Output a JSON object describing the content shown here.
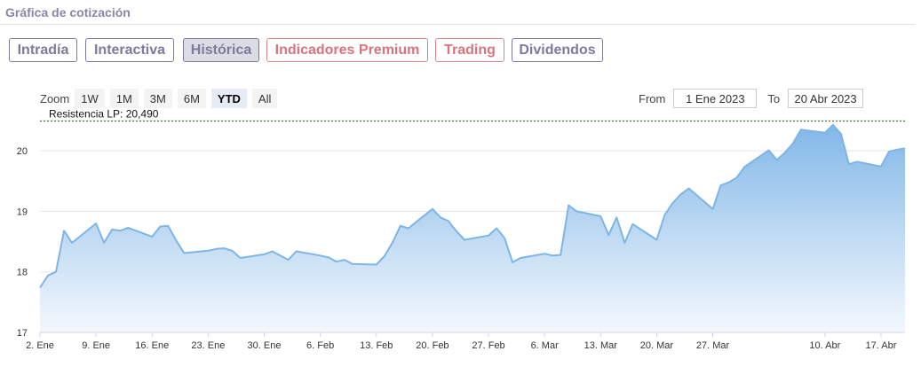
{
  "header": {
    "title": "Gráfica de cotización"
  },
  "tabs": [
    {
      "label": "Intradía",
      "style": "normal"
    },
    {
      "label": "Interactiva",
      "style": "normal"
    },
    {
      "label": "Histórica",
      "style": "active"
    },
    {
      "label": "Indicadores Premium",
      "style": "premium"
    },
    {
      "label": "Trading",
      "style": "premium"
    },
    {
      "label": "Dividendos",
      "style": "normal"
    }
  ],
  "zoom": {
    "label": "Zoom",
    "buttons": [
      "1W",
      "1M",
      "3M",
      "6M",
      "YTD",
      "All"
    ],
    "selected": "YTD"
  },
  "range": {
    "from_label": "From",
    "from_value": "1 Ene 2023",
    "to_label": "To",
    "to_value": "20 Abr 2023"
  },
  "colors": {
    "tab_normal": "#7d7a9c",
    "tab_premium": "#d9737f",
    "line": "#7eb5e6",
    "area_top": "#7ab3e6",
    "area_bottom": "#f2f7fd",
    "resistance": "#2e6b2e"
  },
  "chart_data": {
    "type": "area",
    "title": "",
    "xlabel": "",
    "ylabel": "",
    "ylim": [
      17,
      20.5
    ],
    "yticks": [
      17,
      18,
      19,
      20
    ],
    "xticks": [
      "2. Ene",
      "9. Ene",
      "16. Ene",
      "23. Ene",
      "30. Ene",
      "6. Feb",
      "13. Feb",
      "20. Feb",
      "27. Feb",
      "6. Mar",
      "13. Mar",
      "20. Mar",
      "27. Mar",
      "10. Abr",
      "17. Abr"
    ],
    "xtick_dates": [
      "2023-01-02",
      "2023-01-09",
      "2023-01-16",
      "2023-01-23",
      "2023-01-30",
      "2023-02-06",
      "2023-02-13",
      "2023-02-20",
      "2023-02-27",
      "2023-03-06",
      "2023-03-13",
      "2023-03-20",
      "2023-03-27",
      "2023-04-10",
      "2023-04-17"
    ],
    "xrange": [
      "2023-01-02",
      "2023-04-20"
    ],
    "grid": true,
    "resistance": {
      "label": "Resistencia LP: 20,490",
      "value": 20.49
    },
    "series": [
      {
        "name": "",
        "x": [
          "2023-01-02",
          "2023-01-03",
          "2023-01-04",
          "2023-01-05",
          "2023-01-06",
          "2023-01-09",
          "2023-01-10",
          "2023-01-11",
          "2023-01-12",
          "2023-01-13",
          "2023-01-16",
          "2023-01-17",
          "2023-01-18",
          "2023-01-19",
          "2023-01-20",
          "2023-01-23",
          "2023-01-24",
          "2023-01-25",
          "2023-01-26",
          "2023-01-27",
          "2023-01-30",
          "2023-01-31",
          "2023-02-01",
          "2023-02-02",
          "2023-02-03",
          "2023-02-06",
          "2023-02-07",
          "2023-02-08",
          "2023-02-09",
          "2023-02-10",
          "2023-02-13",
          "2023-02-14",
          "2023-02-15",
          "2023-02-16",
          "2023-02-17",
          "2023-02-20",
          "2023-02-21",
          "2023-02-22",
          "2023-02-23",
          "2023-02-24",
          "2023-02-27",
          "2023-02-28",
          "2023-03-01",
          "2023-03-02",
          "2023-03-03",
          "2023-03-06",
          "2023-03-07",
          "2023-03-08",
          "2023-03-09",
          "2023-03-10",
          "2023-03-13",
          "2023-03-14",
          "2023-03-15",
          "2023-03-16",
          "2023-03-17",
          "2023-03-20",
          "2023-03-21",
          "2023-03-22",
          "2023-03-23",
          "2023-03-24",
          "2023-03-27",
          "2023-03-28",
          "2023-03-29",
          "2023-03-30",
          "2023-03-31",
          "2023-04-03",
          "2023-04-04",
          "2023-04-05",
          "2023-04-06",
          "2023-04-07",
          "2023-04-10",
          "2023-04-11",
          "2023-04-12",
          "2023-04-13",
          "2023-04-14",
          "2023-04-17",
          "2023-04-18",
          "2023-04-19",
          "2023-04-20"
        ],
        "values": [
          17.74,
          17.94,
          18.0,
          18.68,
          18.48,
          18.8,
          18.48,
          18.7,
          18.68,
          18.73,
          18.58,
          18.75,
          18.76,
          18.52,
          18.31,
          18.35,
          18.38,
          18.39,
          18.35,
          18.23,
          18.29,
          18.34,
          18.27,
          18.2,
          18.34,
          18.27,
          18.24,
          18.17,
          18.2,
          18.13,
          18.12,
          18.26,
          18.48,
          18.76,
          18.72,
          19.04,
          18.9,
          18.84,
          18.67,
          18.53,
          18.6,
          18.72,
          18.56,
          18.16,
          18.23,
          18.3,
          18.27,
          18.28,
          19.1,
          19.0,
          18.92,
          18.61,
          18.9,
          18.48,
          18.79,
          18.53,
          18.94,
          19.14,
          19.28,
          19.38,
          19.04,
          19.43,
          19.48,
          19.56,
          19.74,
          20.01,
          19.85,
          19.97,
          20.12,
          20.35,
          20.3,
          20.43,
          20.28,
          19.78,
          19.82,
          19.74,
          19.99,
          20.02,
          20.04
        ]
      }
    ]
  }
}
